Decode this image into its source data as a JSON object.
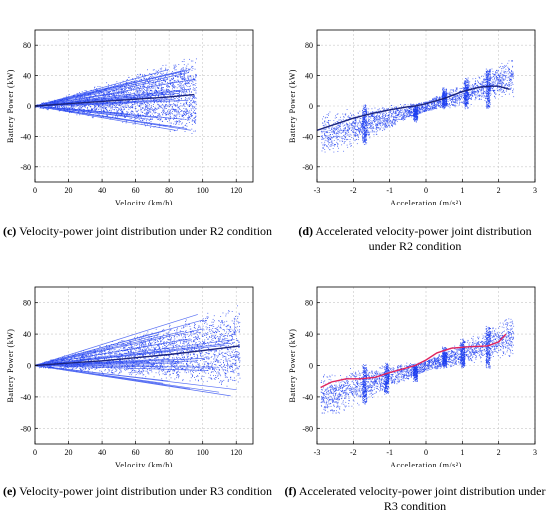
{
  "charts": [
    {
      "type": "scatter",
      "xlabel": "Velocity  (km/h)",
      "ylabel": "Battery Power  (kW)",
      "xlim": [
        0,
        130
      ],
      "ylim": [
        -100,
        100
      ],
      "xticks": [
        0,
        20,
        40,
        60,
        80,
        100,
        120
      ],
      "yticks": [
        -80,
        -40,
        0,
        40,
        80
      ],
      "x_max_data": 96,
      "fit": {
        "color": "#1a237e",
        "x": [
          0,
          20,
          40,
          60,
          80,
          95
        ],
        "y": [
          0,
          3,
          6,
          9,
          12,
          15
        ]
      },
      "caption_label": "(c)",
      "caption_text": "Velocity-power joint distribution under R2 condition"
    },
    {
      "type": "scatter",
      "xlabel": "Acceleration  (m/s²)",
      "ylabel": "Battery Power  (kW)",
      "xlim": [
        -3,
        3
      ],
      "ylim": [
        -100,
        100
      ],
      "xticks": [
        -3,
        -2,
        -1,
        0,
        1,
        2,
        3
      ],
      "yticks": [
        -80,
        -40,
        0,
        40,
        80
      ],
      "fit": {
        "color": "#1a237e",
        "x": [
          -3.0,
          -2.5,
          -2.0,
          -1.5,
          -1.0,
          -0.5,
          -0.3,
          0.0,
          0.5,
          1.0,
          1.5,
          1.8,
          2.0,
          2.3
        ],
        "y": [
          -32,
          -24,
          -16,
          -10,
          -5,
          -1,
          0,
          3,
          10,
          19,
          25,
          26,
          26,
          22
        ]
      },
      "caption_label": "(d)",
      "caption_text": "Accelerated velocity-power joint distribution under R2 condition"
    },
    {
      "type": "scatter",
      "xlabel": "Velocity (km/h)",
      "ylabel": "Battery Power  (kW)",
      "xlim": [
        0,
        130
      ],
      "ylim": [
        -100,
        100
      ],
      "xticks": [
        0,
        20,
        40,
        60,
        80,
        100,
        120
      ],
      "yticks": [
        -80,
        -40,
        0,
        40,
        80
      ],
      "x_max_data": 122,
      "fit": {
        "color": "#1a237e",
        "x": [
          0,
          20,
          40,
          60,
          80,
          100,
          122
        ],
        "y": [
          0,
          3,
          6,
          10,
          14,
          19,
          25
        ]
      },
      "caption_label": "(e)",
      "caption_text": "Velocity-power joint distribution under R3 condition"
    },
    {
      "type": "scatter",
      "xlabel": "Acceleration  (m/s²)",
      "ylabel": "Battery Power  (kW)",
      "xlim": [
        -3,
        3
      ],
      "ylim": [
        -100,
        100
      ],
      "xticks": [
        -3,
        -2,
        -1,
        0,
        1,
        2,
        3
      ],
      "yticks": [
        -80,
        -40,
        0,
        40,
        80
      ],
      "fit": {
        "color": "#e0245e",
        "x": [
          -2.9,
          -2.6,
          -2.2,
          -1.8,
          -1.4,
          -1.0,
          -0.6,
          -0.3,
          0.0,
          0.3,
          0.7,
          1.2,
          1.7,
          2.0,
          2.2
        ],
        "y": [
          -28,
          -21,
          -17,
          -17,
          -15,
          -9,
          -4,
          0,
          7,
          16,
          22,
          24,
          25,
          30,
          40
        ]
      },
      "caption_label": "(f)",
      "caption_text": "Accelerated velocity-power joint distribution under R3 condition"
    }
  ],
  "colors": {
    "scatter": "#1f3ff0",
    "axis": "#000000",
    "grid": "#c8c8c8"
  }
}
